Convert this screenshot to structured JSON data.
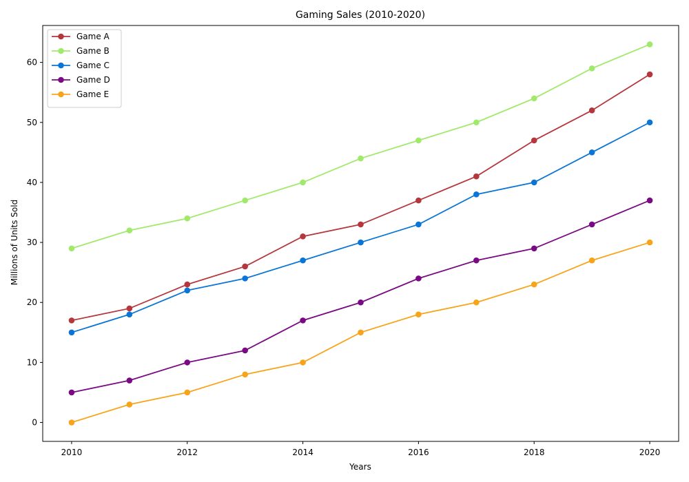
{
  "chart_data": {
    "type": "line",
    "title": "Gaming Sales (2010-2020)",
    "xlabel": "Years",
    "ylabel": "Millions of Units Sold",
    "x": [
      2010,
      2011,
      2012,
      2013,
      2014,
      2015,
      2016,
      2017,
      2018,
      2019,
      2020
    ],
    "xticks": [
      "2010",
      "2012",
      "2014",
      "2016",
      "2018",
      "2020"
    ],
    "yticks": [
      "0",
      "10",
      "20",
      "30",
      "40",
      "50",
      "60"
    ],
    "xlim": [
      2009.5,
      2020.5
    ],
    "ylim": [
      -3.15,
      66.15
    ],
    "grid": false,
    "legend": "upper-left",
    "series": [
      {
        "name": "Game A",
        "color": "#b5373d",
        "values": [
          17,
          19,
          23,
          26,
          31,
          33,
          37,
          41,
          47,
          52,
          58
        ]
      },
      {
        "name": "Game B",
        "color": "#a1e96b",
        "values": [
          29,
          32,
          34,
          37,
          40,
          44,
          47,
          50,
          54,
          59,
          63
        ]
      },
      {
        "name": "Game C",
        "color": "#0a75d6",
        "values": [
          15,
          18,
          22,
          24,
          27,
          30,
          33,
          38,
          40,
          45,
          50
        ]
      },
      {
        "name": "Game D",
        "color": "#7a0a83",
        "values": [
          5,
          7,
          10,
          12,
          17,
          20,
          24,
          27,
          29,
          33,
          37
        ]
      },
      {
        "name": "Game E",
        "color": "#f7a41a",
        "values": [
          0,
          3,
          5,
          8,
          10,
          15,
          18,
          20,
          23,
          27,
          30
        ]
      }
    ]
  }
}
